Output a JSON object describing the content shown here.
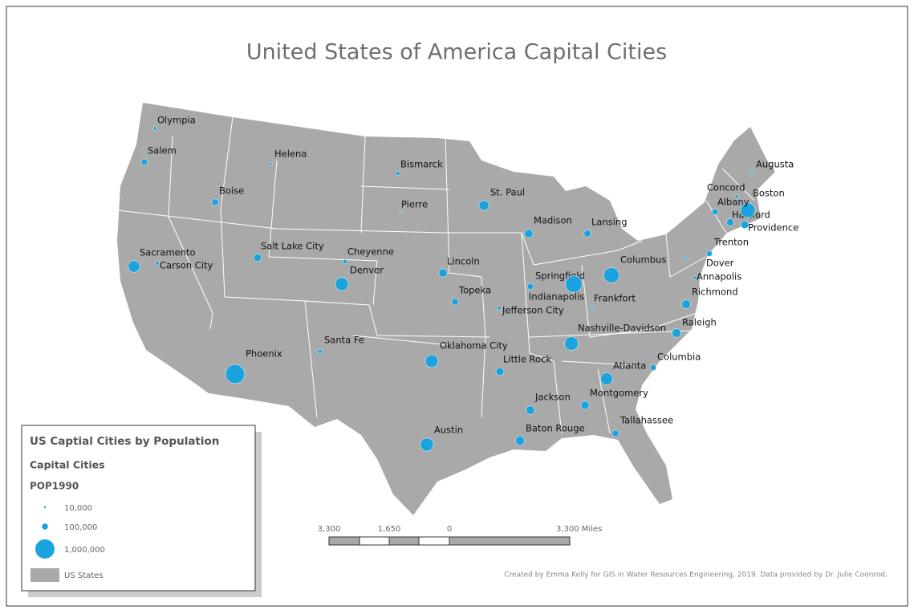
{
  "title": "United States of America Capital Cities",
  "cities": [
    {
      "name": "Olympia",
      "pop": 34000
    },
    {
      "name": "Salem",
      "pop": 108000
    },
    {
      "name": "Boise",
      "pop": 126000
    },
    {
      "name": "Helena",
      "pop": 25000
    },
    {
      "name": "Bismarck",
      "pop": 49000
    },
    {
      "name": "Pierre",
      "pop": 13000
    },
    {
      "name": "St. Paul",
      "pop": 272000
    },
    {
      "name": "Madison",
      "pop": 191000
    },
    {
      "name": "Lansing",
      "pop": 127000
    },
    {
      "name": "Sacramento",
      "pop": 369000
    },
    {
      "name": "Carson City",
      "pop": 40000
    },
    {
      "name": "Salt Lake City",
      "pop": 160000
    },
    {
      "name": "Cheyenne",
      "pop": 50000
    },
    {
      "name": "Denver",
      "pop": 468000
    },
    {
      "name": "Lincoln",
      "pop": 192000
    },
    {
      "name": "Springfield",
      "pop": 105000
    },
    {
      "name": "Indianapolis",
      "pop": 742000
    },
    {
      "name": "Columbus",
      "pop": 633000
    },
    {
      "name": "Topeka",
      "pop": 120000
    },
    {
      "name": "Jefferson City",
      "pop": 35000
    },
    {
      "name": "Frankfort",
      "pop": 26000
    },
    {
      "name": "Nashville-Davidson",
      "pop": 488000
    },
    {
      "name": "Oklahoma City",
      "pop": 445000
    },
    {
      "name": "Little Rock",
      "pop": 176000
    },
    {
      "name": "Santa Fe",
      "pop": 56000
    },
    {
      "name": "Phoenix",
      "pop": 983000
    },
    {
      "name": "Atlanta",
      "pop": 394000
    },
    {
      "name": "Montgomery",
      "pop": 187000
    },
    {
      "name": "Jackson",
      "pop": 197000
    },
    {
      "name": "Baton Rouge",
      "pop": 220000
    },
    {
      "name": "Tallahassee",
      "pop": 125000
    },
    {
      "name": "Austin",
      "pop": 466000
    },
    {
      "name": "Columbia",
      "pop": 98000
    },
    {
      "name": "Raleigh",
      "pop": 208000
    },
    {
      "name": "Richmond",
      "pop": 203000
    },
    {
      "name": "Annapolis",
      "pop": 33000
    },
    {
      "name": "Dover",
      "pop": 27000
    },
    {
      "name": "Trenton",
      "pop": 89000
    },
    {
      "name": "Hartford",
      "pop": 140000
    },
    {
      "name": "Providence",
      "pop": 161000
    },
    {
      "name": "Boston",
      "pop": 574000
    },
    {
      "name": "Albany",
      "pop": 101000
    },
    {
      "name": "Concord",
      "pop": 36000
    },
    {
      "name": "Augusta",
      "pop": 21000
    }
  ],
  "legend": {
    "title": "US Captial Cities by Population",
    "subtitle": "Capital Cities",
    "field": "POP1990",
    "sizes": [
      {
        "value": 10000,
        "label": "10,000"
      },
      {
        "value": 100000,
        "label": "100,000"
      },
      {
        "value": 1000000,
        "label": "1,000,000"
      }
    ],
    "states_label": "US States"
  },
  "scale_bar": {
    "labels": [
      "3,300",
      "1,650",
      "0",
      "3,300 Miles"
    ]
  },
  "credit": "Created by Emma Kelly for GIS in Water Resources Engineering, 2019. Data provided by Dr. Julie Coonrod."
}
